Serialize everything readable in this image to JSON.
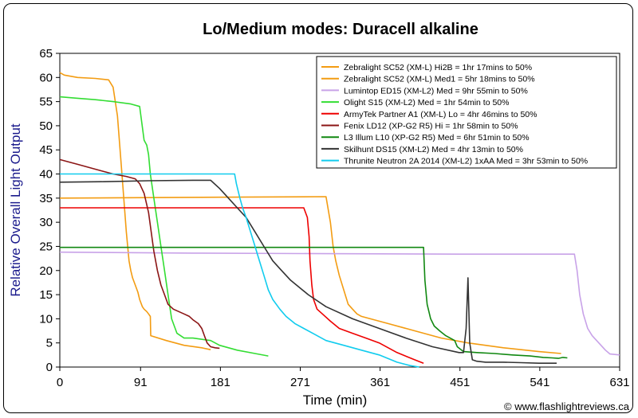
{
  "copyright": "© www.flashlightreviews.ca",
  "chart_data": {
    "type": "line",
    "title": "Lo/Medium modes: Duracell alkaline",
    "xlabel": "Time (min)",
    "ylabel": "Relative Overall Light Output",
    "xlim": [
      0,
      631
    ],
    "ylim": [
      0,
      65
    ],
    "xticks": [
      0,
      91,
      181,
      271,
      361,
      451,
      541,
      631
    ],
    "yticks": [
      0,
      5,
      10,
      15,
      20,
      25,
      30,
      35,
      40,
      45,
      50,
      55,
      60,
      65
    ],
    "grid": false,
    "legend_position": "top-right",
    "series": [
      {
        "name": "Zebralight SC52 (XM-L) Hi2B = 1hr 17mins to 50%",
        "color": "#f39c12",
        "x": [
          0,
          5,
          20,
          40,
          55,
          60,
          65,
          70,
          75,
          78,
          80,
          82,
          85,
          88,
          90,
          93,
          95,
          98,
          100,
          102,
          102.5,
          120,
          140,
          160,
          170
        ],
        "y": [
          61,
          60.5,
          60,
          59.8,
          59.5,
          58,
          52,
          40,
          28,
          22,
          20,
          18.5,
          17,
          15.5,
          14,
          12.5,
          12,
          11.5,
          11,
          10.5,
          6.5,
          5.5,
          4.5,
          4,
          3.6
        ]
      },
      {
        "name": "Zebralight SC52 (XM-L) Med1 = 5hr 18mins to 50%",
        "color": "#f39c12",
        "x": [
          0,
          100,
          200,
          300,
          305,
          308,
          311,
          315,
          320,
          325,
          330,
          335,
          340,
          350,
          370,
          400,
          430,
          460,
          500,
          540,
          565
        ],
        "y": [
          35,
          35.1,
          35.2,
          35.3,
          30,
          25,
          22,
          19,
          16,
          13,
          12,
          11,
          10.5,
          10,
          9,
          7.5,
          6,
          5,
          4,
          3.2,
          2.8
        ]
      },
      {
        "name": "Lumintop ED15 (XM-L2) Med = 9hr 55min to 50%",
        "color": "#c8a2e8",
        "x": [
          0,
          150,
          300,
          450,
          580,
          583,
          586,
          590,
          595,
          600,
          605,
          610,
          615,
          620,
          631
        ],
        "y": [
          23.8,
          23.6,
          23.5,
          23.4,
          23.4,
          20,
          15,
          11,
          8,
          6.5,
          5.5,
          4.5,
          3.5,
          2.7,
          2.5
        ]
      },
      {
        "name": "Olight S15 (XM-L2) Med = 1hr 54min to 50%",
        "color": "#33dd33",
        "x": [
          0,
          20,
          40,
          60,
          80,
          90,
          95,
          98,
          100,
          102,
          106,
          110,
          114,
          118,
          122,
          126,
          132,
          140,
          150,
          170,
          180,
          200,
          220,
          235
        ],
        "y": [
          56,
          55.7,
          55.4,
          55,
          54.5,
          54,
          47,
          46,
          44,
          40,
          35,
          30,
          25,
          20,
          15,
          10,
          7,
          6,
          6,
          5.5,
          4.5,
          3.5,
          2.8,
          2.3
        ]
      },
      {
        "name": "ArmyTek Partner A1 (XM-L) Lo = 4hr 46mins to 50%",
        "color": "#ee0000",
        "x": [
          0,
          100,
          200,
          260,
          275,
          279,
          281,
          282,
          284,
          286,
          290,
          296,
          305,
          315,
          330,
          345,
          360,
          380,
          400,
          410
        ],
        "y": [
          33,
          33,
          33,
          33,
          33,
          31,
          27,
          22,
          17,
          14,
          12,
          11,
          9.5,
          8,
          7,
          6,
          5,
          3,
          1.5,
          0.8
        ]
      },
      {
        "name": "Fenix LD12 (XP-G2 R5) Hi = 1hr 58min to 50%",
        "color": "#8b1515",
        "x": [
          0,
          10,
          20,
          40,
          60,
          75,
          85,
          90,
          95,
          100,
          103,
          106,
          110,
          114,
          118,
          122,
          128,
          134,
          140,
          146,
          150,
          156,
          160,
          163,
          166,
          170,
          175,
          180
        ],
        "y": [
          43,
          42.5,
          42,
          41,
          40,
          39.5,
          39,
          38,
          36,
          32,
          28,
          24,
          20,
          17,
          15,
          13,
          12,
          11.5,
          11,
          10.5,
          9.8,
          9,
          8,
          6.5,
          5,
          4.2,
          4,
          3.9
        ]
      },
      {
        "name": "L3 Illum L10 (XP-G2 R5) Med = 6hr 51min to 50%",
        "color": "#118811",
        "x": [
          0,
          100,
          200,
          300,
          395,
          410,
          411.5,
          414,
          418,
          422,
          428,
          435,
          445,
          448,
          455,
          470,
          490,
          510,
          530,
          545,
          555,
          562,
          567,
          572
        ],
        "y": [
          24.8,
          24.8,
          24.8,
          24.8,
          24.8,
          24.8,
          18,
          13,
          10,
          8.5,
          7.5,
          6.5,
          5.5,
          4.2,
          3.2,
          3,
          2.8,
          2.5,
          2.3,
          2,
          1.9,
          1.8,
          2,
          1.9
        ]
      },
      {
        "name": "Skilhunt DS15 (XM-L2) Med = 4hr 13min to 50%",
        "color": "#333333",
        "x": [
          0,
          50,
          100,
          150,
          170,
          180,
          190,
          200,
          210,
          220,
          230,
          240,
          250,
          260,
          280,
          300,
          330,
          360,
          390,
          420,
          450,
          455,
          458,
          460,
          462,
          465,
          470,
          480,
          500,
          520,
          540,
          560
        ],
        "y": [
          38.3,
          38.4,
          38.6,
          38.7,
          38.7,
          37,
          35,
          33,
          31,
          28,
          25,
          22,
          20,
          18,
          15,
          12.5,
          10,
          8,
          6,
          4.2,
          3,
          3,
          8,
          18.5,
          5,
          1.5,
          1.2,
          1,
          1,
          0.9,
          0.8,
          0.8
        ]
      },
      {
        "name": "Thrunite Neutron 2A 2014 (XM-L2) 1xAA Med = 3hr 53min to 50%",
        "color": "#11ccee",
        "x": [
          0,
          50,
          100,
          150,
          190,
          195,
          197,
          199,
          203,
          206,
          210,
          215,
          220,
          225,
          230,
          235,
          240,
          248,
          255,
          265,
          275,
          285,
          300,
          320,
          340,
          360,
          380,
          395,
          405
        ],
        "y": [
          40,
          40,
          40,
          40,
          40,
          40,
          40,
          38,
          35,
          33,
          31,
          28,
          25,
          22,
          19,
          16,
          14,
          12,
          10.5,
          9,
          8,
          7,
          5.5,
          4.5,
          3.5,
          2.5,
          1,
          0.3,
          0
        ]
      }
    ],
    "annotations": []
  }
}
